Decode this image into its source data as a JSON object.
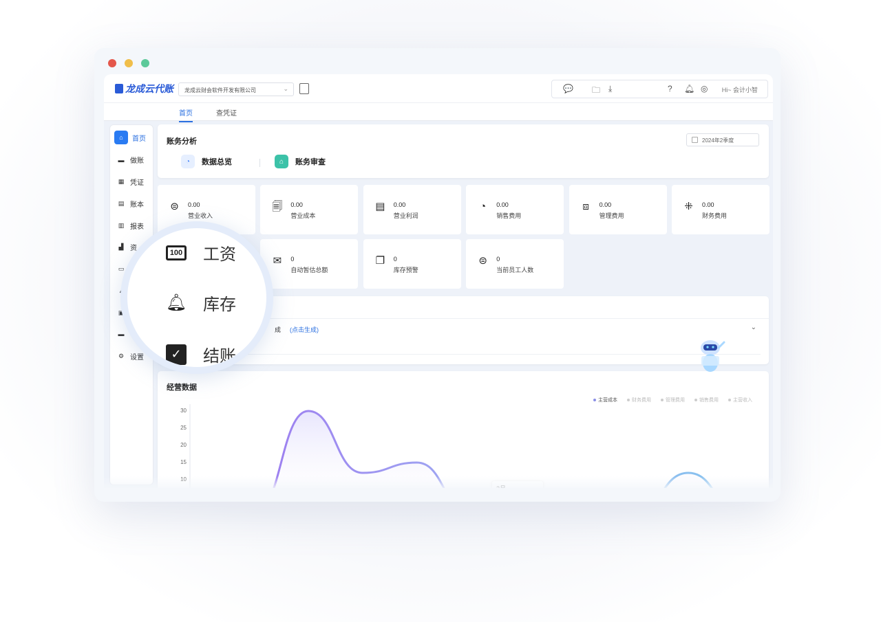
{
  "window": {
    "dot_colors": [
      "#e4574b",
      "#f0be4a",
      "#5cc99a"
    ]
  },
  "app": {
    "logo": "龙成云代账",
    "company_select": "龙成云财会软件开发有限公司",
    "greeting": "Hi~ 会计小智"
  },
  "tabs": [
    {
      "label": "首页"
    },
    {
      "label": "查凭证"
    }
  ],
  "sidebar": {
    "items": [
      {
        "label": "首页",
        "icon": "home-icon"
      },
      {
        "label": "做账",
        "icon": "keyboard-icon"
      },
      {
        "label": "凭证",
        "icon": "grid-icon"
      },
      {
        "label": "账本",
        "icon": "book-icon"
      },
      {
        "label": "报表",
        "icon": "chart-icon"
      },
      {
        "label": "资",
        "icon": "building-icon"
      },
      {
        "label": "",
        "icon": "salary-icon"
      },
      {
        "label": "",
        "icon": "bell-icon"
      },
      {
        "label": "",
        "icon": "clipboard-icon"
      },
      {
        "label": "",
        "icon": "archive-icon"
      },
      {
        "label": "设置",
        "icon": "gear-icon"
      }
    ]
  },
  "analysis": {
    "title": "账务分析",
    "date_range": "2024年2季度",
    "segments": [
      {
        "label": "数据总览",
        "icon": "pie-icon",
        "color": "#4a86f7"
      },
      {
        "label": "账务审查",
        "icon": "house-icon",
        "color": "#3cc2a8"
      }
    ]
  },
  "metrics": [
    {
      "value": "0.00",
      "label": "营业收入",
      "icon": "coin-icon"
    },
    {
      "value": "0.00",
      "label": "营业成本",
      "icon": "docs-icon"
    },
    {
      "value": "0.00",
      "label": "营业利润",
      "icon": "sheet-icon"
    },
    {
      "value": "0.00",
      "label": "销售费用",
      "icon": "pie-icon"
    },
    {
      "value": "0.00",
      "label": "管理费用",
      "icon": "blocks-icon"
    },
    {
      "value": "0.00",
      "label": "财务费用",
      "icon": "apps-icon"
    },
    {
      "value": "0",
      "label": "自动暂估总额",
      "icon": "inbox-icon"
    },
    {
      "value": "0",
      "label": "库存预警",
      "icon": "copy-icon"
    },
    {
      "value": "0",
      "label": "当前员工人数",
      "icon": "person-icon"
    }
  ],
  "status": {
    "text": "成",
    "link": "(点击生成)"
  },
  "ops": {
    "title": "经营数据",
    "legend": [
      {
        "label": "主营成本",
        "active": true
      },
      {
        "label": "财务费用",
        "active": false
      },
      {
        "label": "管理费用",
        "active": false
      },
      {
        "label": "销售费用",
        "active": false
      },
      {
        "label": "主营收入",
        "active": false
      }
    ],
    "tooltip": "2月"
  },
  "chart_data": {
    "type": "line",
    "ylim": [
      0,
      30
    ],
    "yticks": [
      "30",
      "25",
      "20",
      "15",
      "10"
    ],
    "series": [
      {
        "name": "主营成本",
        "values": [
          0,
          30,
          12,
          15,
          0,
          1,
          1,
          0,
          12,
          0
        ]
      }
    ]
  },
  "magnifier": {
    "items": [
      {
        "label": "工资",
        "icon": "salary-icon"
      },
      {
        "label": "库存",
        "icon": "bell-icon"
      },
      {
        "label": "结账",
        "icon": "clipboard-icon"
      }
    ]
  }
}
